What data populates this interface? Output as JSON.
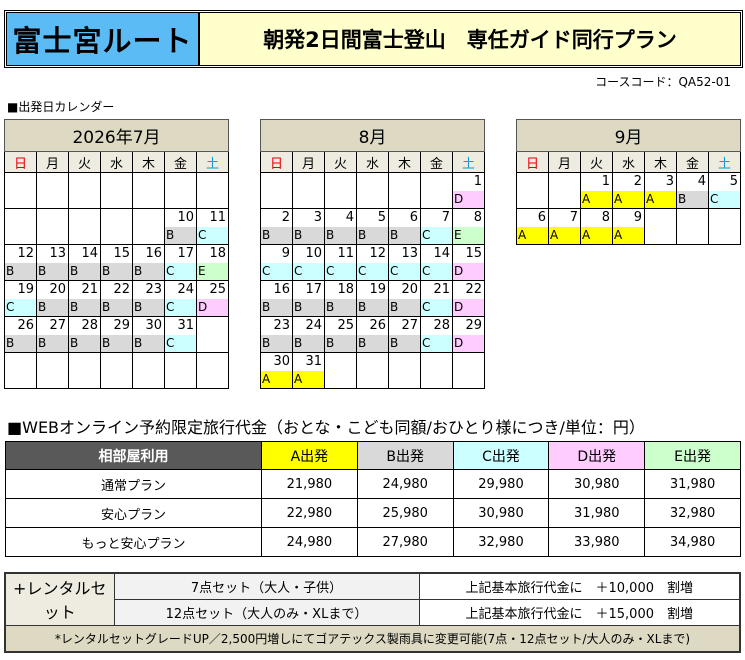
{
  "header": {
    "route": "富士宮ルート",
    "plan": "朝発2日間富士登山　専任ガイド同行プラン"
  },
  "course_code": "コースコード：QA52-01",
  "calendar_heading": "■出発日カレンダー",
  "weekdays": [
    "日",
    "月",
    "火",
    "水",
    "木",
    "金",
    "土"
  ],
  "label_colors": {
    "A": "#ffff00",
    "B": "#d9d9d9",
    "C": "#ccffff",
    "D": "#ffccff",
    "E": "#ccffcc"
  },
  "calendars": [
    {
      "title": "2026年7月",
      "weeks": [
        [
          null,
          null,
          null,
          null,
          null,
          null,
          null
        ],
        [
          null,
          null,
          null,
          null,
          null,
          [
            10,
            "B"
          ],
          [
            11,
            "C"
          ]
        ],
        [
          [
            12,
            "B"
          ],
          [
            13,
            "B"
          ],
          [
            14,
            "B"
          ],
          [
            15,
            "B"
          ],
          [
            16,
            "B"
          ],
          [
            17,
            "C"
          ],
          [
            18,
            "E"
          ]
        ],
        [
          [
            19,
            "C"
          ],
          [
            20,
            "B"
          ],
          [
            21,
            "B"
          ],
          [
            22,
            "B"
          ],
          [
            23,
            "B"
          ],
          [
            24,
            "C"
          ],
          [
            25,
            "D"
          ]
        ],
        [
          [
            26,
            "B"
          ],
          [
            27,
            "B"
          ],
          [
            28,
            "B"
          ],
          [
            29,
            "B"
          ],
          [
            30,
            "B"
          ],
          [
            31,
            "C"
          ],
          null
        ],
        [
          null,
          null,
          null,
          null,
          null,
          null,
          null
        ]
      ]
    },
    {
      "title": "8月",
      "weeks": [
        [
          null,
          null,
          null,
          null,
          null,
          null,
          [
            1,
            "D"
          ]
        ],
        [
          [
            2,
            "B"
          ],
          [
            3,
            "B"
          ],
          [
            4,
            "B"
          ],
          [
            5,
            "B"
          ],
          [
            6,
            "B"
          ],
          [
            7,
            "C"
          ],
          [
            8,
            "E"
          ]
        ],
        [
          [
            9,
            "C"
          ],
          [
            10,
            "C"
          ],
          [
            11,
            "C"
          ],
          [
            12,
            "C"
          ],
          [
            13,
            "C"
          ],
          [
            14,
            "C"
          ],
          [
            15,
            "D"
          ]
        ],
        [
          [
            16,
            "B"
          ],
          [
            17,
            "B"
          ],
          [
            18,
            "B"
          ],
          [
            19,
            "B"
          ],
          [
            20,
            "B"
          ],
          [
            21,
            "C"
          ],
          [
            22,
            "D"
          ]
        ],
        [
          [
            23,
            "B"
          ],
          [
            24,
            "B"
          ],
          [
            25,
            "B"
          ],
          [
            26,
            "B"
          ],
          [
            27,
            "B"
          ],
          [
            28,
            "C"
          ],
          [
            29,
            "D"
          ]
        ],
        [
          [
            30,
            "A"
          ],
          [
            31,
            "A"
          ],
          null,
          null,
          null,
          null,
          null
        ]
      ]
    },
    {
      "title": "9月",
      "weeks": [
        [
          null,
          null,
          [
            1,
            "A"
          ],
          [
            2,
            "A"
          ],
          [
            3,
            "A"
          ],
          [
            4,
            "B"
          ],
          [
            5,
            "C"
          ]
        ],
        [
          [
            6,
            "A"
          ],
          [
            7,
            "A"
          ],
          [
            8,
            "A"
          ],
          [
            9,
            "A"
          ],
          null,
          null,
          null
        ]
      ]
    }
  ],
  "price": {
    "title": "■WEBオンライン予約限定旅行代金（おとな・こども同額/おひとり様につき/単位：円）",
    "headers": [
      "相部屋利用",
      "A出発",
      "B出発",
      "C出発",
      "D出発",
      "E出発"
    ],
    "rows": [
      [
        "通常プラン",
        "21,980",
        "24,980",
        "29,980",
        "30,980",
        "31,980"
      ],
      [
        "安心プラン",
        "22,980",
        "25,980",
        "30,980",
        "31,980",
        "32,980"
      ],
      [
        "もっと安心プラン",
        "24,980",
        "27,980",
        "32,980",
        "33,980",
        "34,980"
      ]
    ]
  },
  "rental": {
    "label": "+レンタルセット",
    "rows": [
      {
        "set": "7点セット（大人・子供）",
        "price": "上記基本旅行代金に　＋10,000　割増"
      },
      {
        "set": "12点セット（大人のみ・XLまで）",
        "price": "上記基本旅行代金に　＋15,000　割増"
      }
    ],
    "note": "*レンタルセットグレードUP／2,500円増しにてゴアテックス製雨具に変更可能(7点・12点セット/大人のみ・XLまで)"
  }
}
